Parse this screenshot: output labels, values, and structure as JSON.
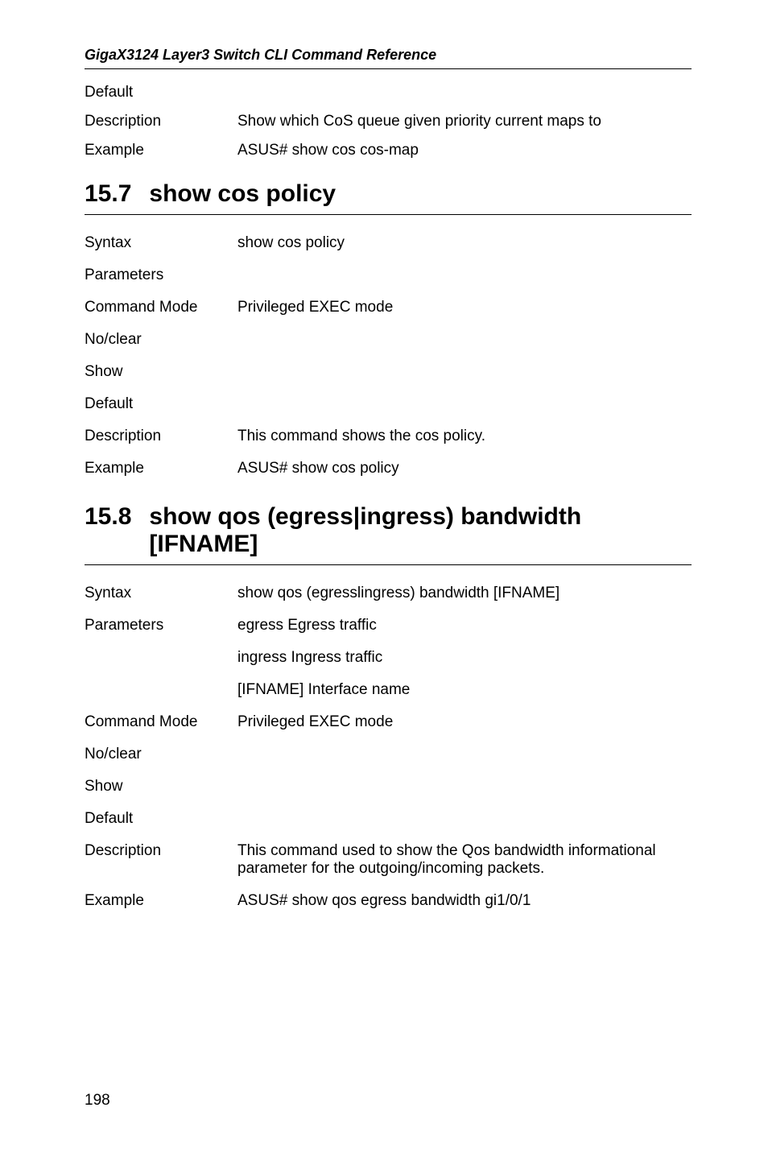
{
  "document": {
    "header_title": "GigaX3124 Layer3 Switch CLI Command Reference",
    "page_number": "198"
  },
  "top_block": {
    "rows": [
      {
        "label": "Default",
        "value": ""
      },
      {
        "label": "Description",
        "value": "Show which CoS queue given priority current maps to"
      },
      {
        "label": "Example",
        "value": "ASUS# show cos cos-map"
      }
    ]
  },
  "section1": {
    "number": "15.7",
    "title": "show cos policy",
    "rows": [
      {
        "label": "Syntax",
        "value": "show cos policy"
      },
      {
        "label": "Parameters",
        "value": ""
      },
      {
        "label": "Command Mode",
        "value": "Privileged EXEC mode"
      },
      {
        "label": "No/clear",
        "value": ""
      },
      {
        "label": "Show",
        "value": ""
      },
      {
        "label": "Default",
        "value": ""
      },
      {
        "label": "Description",
        "value": "This command shows the cos policy."
      },
      {
        "label": "Example",
        "value": "ASUS# show cos policy"
      }
    ]
  },
  "section2": {
    "number": "15.8",
    "title_line1": "show qos (egress|ingress) bandwidth",
    "title_line2": "[IFNAME]",
    "rows": [
      {
        "label": "Syntax",
        "value": "show qos (egresslingress) bandwidth [IFNAME]"
      },
      {
        "label": "Parameters",
        "value": "egress   Egress traffic"
      },
      {
        "label": "",
        "value": "ingress  Ingress traffic"
      },
      {
        "label": "",
        "value": "[IFNAME]  Interface name"
      },
      {
        "label": "Command Mode",
        "value": "Privileged EXEC mode"
      },
      {
        "label": "No/clear",
        "value": ""
      },
      {
        "label": "Show",
        "value": ""
      },
      {
        "label": "Default",
        "value": ""
      },
      {
        "label": "Description",
        "value": "This command used to show the Qos bandwidth informational parameter for the outgoing/incoming packets."
      },
      {
        "label": "Example",
        "value": "ASUS# show qos egress bandwidth gi1/0/1"
      }
    ]
  }
}
